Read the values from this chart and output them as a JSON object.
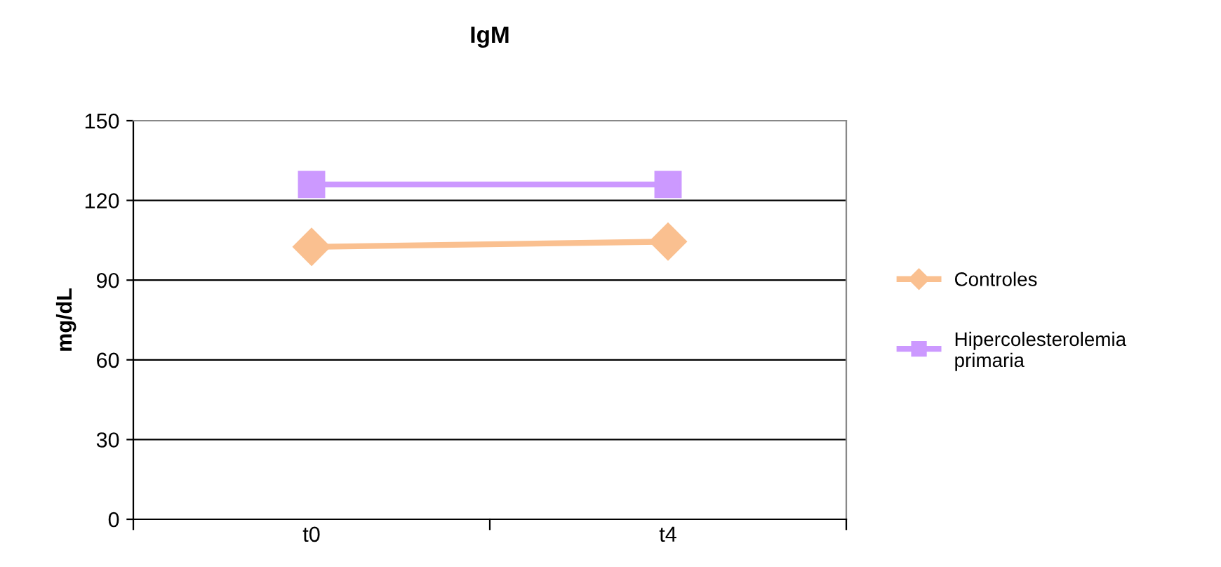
{
  "chart_data": {
    "type": "line",
    "title": "IgM",
    "ylabel": "mg/dL",
    "categories": [
      "t0",
      "t4"
    ],
    "series": [
      {
        "name": "Controles",
        "color": "#fac090",
        "values": [
          102.5,
          104.5
        ],
        "marker": "diamond"
      },
      {
        "name": "Hipercolesterolemia primaria",
        "color": "#cc99ff",
        "values": [
          126,
          126
        ],
        "marker": "square"
      }
    ],
    "ylim": [
      0,
      150
    ],
    "yticks": [
      0,
      30,
      60,
      90,
      120,
      150
    ],
    "grid": "y",
    "legend": "right",
    "line_style": "solid"
  }
}
